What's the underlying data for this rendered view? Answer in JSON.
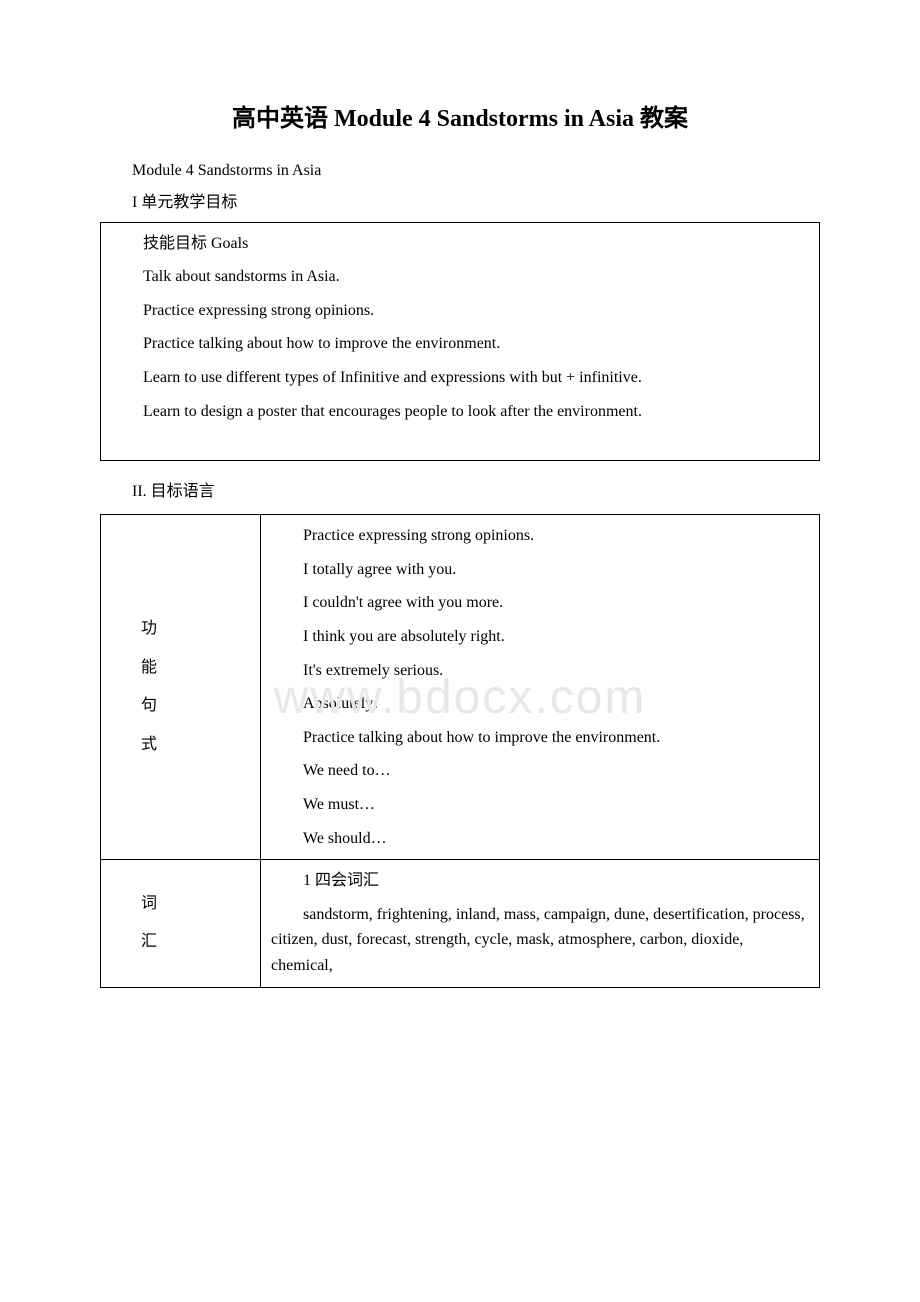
{
  "watermark": "www.bdocx.com",
  "title": "高中英语 Module 4 Sandstorms in Asia 教案",
  "moduleLine": "Module 4 Sandstorms in Asia",
  "section1": "I 单元教学目标",
  "goals": {
    "heading": "技能目标 Goals",
    "items": [
      "Talk about sandstorms in Asia.",
      "Practice expressing strong opinions.",
      "Practice talking about how to improve the environment.",
      "Learn to use different types of Infinitive and expressions with but + infinitive.",
      "Learn to design a poster that encourages people to look after the environment."
    ]
  },
  "section2": "II. 目标语言",
  "functionLabel": {
    "c1": "功",
    "c2": "能",
    "c3": "句",
    "c4": "式"
  },
  "functionContent": {
    "h1": "Practice expressing strong opinions.",
    "l1": "I totally agree with you.",
    "l2": "I couldn't agree with you more.",
    "l3": "I think you are absolutely right.",
    "l4": "It's extremely serious.",
    "l5": "Absolutely!",
    "h2": "Practice talking about how to improve the environment.",
    "l6": "We need to…",
    "l7": "We must…",
    "l8": "We should…"
  },
  "vocabLabel": {
    "c1": "词",
    "c2": "汇"
  },
  "vocabContent": {
    "h1": "1 四会词汇",
    "list": "sandstorm, frightening, inland, mass, campaign, dune, desertification, process, citizen, dust, forecast, strength, cycle, mask, atmosphere, carbon, dioxide, chemical,"
  }
}
